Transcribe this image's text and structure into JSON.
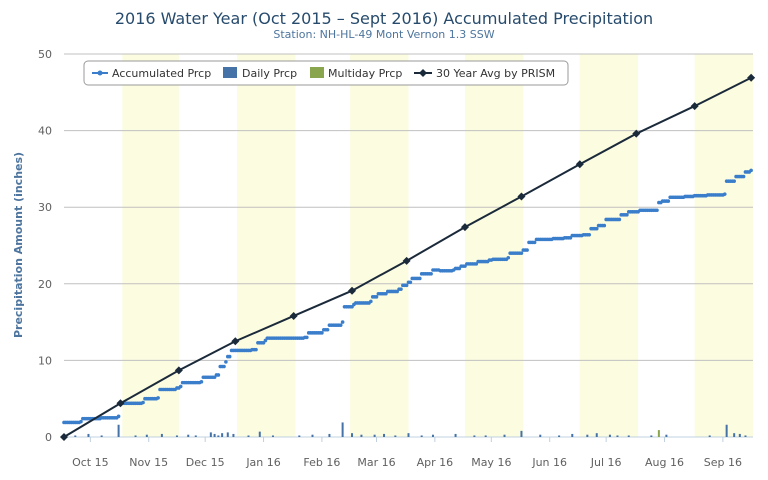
{
  "chart_data": {
    "type": "line",
    "title": "2016 Water Year (Oct 2015 – Sept 2016) Accumulated Precipitation",
    "subtitle": "Station: NH-HL-49 Mont Vernon 1.3 SSW",
    "ylabel": "Precipitation Amount (inches)",
    "xlabel": "",
    "ylim": [
      0,
      50
    ],
    "yticks": [
      0,
      10,
      20,
      30,
      40,
      50
    ],
    "xlim": [
      0,
      366
    ],
    "x_tick_labels": [
      {
        "label": "Oct 15",
        "day": 14
      },
      {
        "label": "Nov 15",
        "day": 45
      },
      {
        "label": "Dec 15",
        "day": 75
      },
      {
        "label": "Jan 16",
        "day": 106
      },
      {
        "label": "Feb 16",
        "day": 137
      },
      {
        "label": "Mar 16",
        "day": 166
      },
      {
        "label": "Apr 16",
        "day": 197
      },
      {
        "label": "May 16",
        "day": 227
      },
      {
        "label": "Jun 16",
        "day": 258
      },
      {
        "label": "Jul 16",
        "day": 288
      },
      {
        "label": "Aug 16",
        "day": 319
      },
      {
        "label": "Sep 16",
        "day": 350
      }
    ],
    "shaded_months": [
      [
        31,
        61
      ],
      [
        92,
        123
      ],
      [
        152,
        183
      ],
      [
        213,
        244
      ],
      [
        274,
        305
      ],
      [
        335,
        366
      ]
    ],
    "grid": true,
    "legend_position": "top-left",
    "legend": [
      {
        "name": "Accumulated Prcp",
        "symbol": "line-dot",
        "color": "#3a7ecb"
      },
      {
        "name": "Daily Prcp",
        "symbol": "bar",
        "color": "#4572a7"
      },
      {
        "name": "Multiday Prcp",
        "symbol": "bar",
        "color": "#89a54e"
      },
      {
        "name": "30 Year Avg by PRISM",
        "symbol": "line-diamond",
        "color": "#1b2a3a"
      }
    ],
    "series": [
      {
        "name": "Accumulated Prcp",
        "color": "#3a7ecb",
        "points": [
          [
            0,
            1.9
          ],
          [
            9,
            2.0
          ],
          [
            10,
            2.4
          ],
          [
            20,
            2.5
          ],
          [
            29,
            2.7
          ],
          [
            30,
            4.4
          ],
          [
            42,
            4.5
          ],
          [
            43,
            5.0
          ],
          [
            50,
            5.1
          ],
          [
            51,
            6.2
          ],
          [
            60,
            6.4
          ],
          [
            62,
            6.6
          ],
          [
            63,
            7.1
          ],
          [
            73,
            7.2
          ],
          [
            74,
            7.8
          ],
          [
            81,
            8.1
          ],
          [
            83,
            9.2
          ],
          [
            86,
            9.8
          ],
          [
            87,
            10.5
          ],
          [
            89,
            11.3
          ],
          [
            100,
            11.4
          ],
          [
            103,
            12.3
          ],
          [
            107,
            12.6
          ],
          [
            108,
            12.9
          ],
          [
            128,
            13.0
          ],
          [
            130,
            13.6
          ],
          [
            138,
            14.0
          ],
          [
            141,
            14.6
          ],
          [
            148,
            15.0
          ],
          [
            149,
            17.0
          ],
          [
            154,
            17.3
          ],
          [
            155,
            17.5
          ],
          [
            163,
            17.7
          ],
          [
            164,
            18.3
          ],
          [
            167,
            18.7
          ],
          [
            172,
            19.0
          ],
          [
            178,
            19.3
          ],
          [
            180,
            19.8
          ],
          [
            183,
            20.2
          ],
          [
            185,
            20.7
          ],
          [
            190,
            21.3
          ],
          [
            196,
            21.8
          ],
          [
            200,
            21.7
          ],
          [
            207,
            21.8
          ],
          [
            208,
            22.0
          ],
          [
            211,
            22.3
          ],
          [
            214,
            22.6
          ],
          [
            220,
            22.9
          ],
          [
            226,
            23.1
          ],
          [
            228,
            23.2
          ],
          [
            236,
            23.4
          ],
          [
            237,
            24.0
          ],
          [
            244,
            24.4
          ],
          [
            247,
            25.4
          ],
          [
            251,
            25.8
          ],
          [
            260,
            25.9
          ],
          [
            266,
            26.0
          ],
          [
            270,
            26.3
          ],
          [
            276,
            26.4
          ],
          [
            280,
            27.2
          ],
          [
            284,
            27.6
          ],
          [
            288,
            28.4
          ],
          [
            296,
            29.0
          ],
          [
            300,
            29.4
          ],
          [
            306,
            29.6
          ],
          [
            316,
            30.6
          ],
          [
            318,
            30.8
          ],
          [
            322,
            31.3
          ],
          [
            330,
            31.4
          ],
          [
            335,
            31.5
          ],
          [
            342,
            31.6
          ],
          [
            351,
            31.7
          ],
          [
            352,
            33.4
          ],
          [
            357,
            34.0
          ],
          [
            362,
            34.6
          ],
          [
            365,
            34.8
          ]
        ]
      },
      {
        "name": "30 Year Avg by PRISM",
        "color": "#1b2a3a",
        "points": [
          [
            0,
            0
          ],
          [
            30,
            4.4
          ],
          [
            61,
            8.7
          ],
          [
            91,
            12.5
          ],
          [
            122,
            15.8
          ],
          [
            153,
            19.1
          ],
          [
            182,
            23.0
          ],
          [
            213,
            27.4
          ],
          [
            243,
            31.4
          ],
          [
            274,
            35.6
          ],
          [
            304,
            39.6
          ],
          [
            335,
            43.2
          ],
          [
            365,
            46.9
          ]
        ]
      }
    ],
    "daily_prcp": [
      [
        1,
        0.3
      ],
      [
        6,
        0.2
      ],
      [
        13,
        0.4
      ],
      [
        20,
        0.2
      ],
      [
        29,
        1.6
      ],
      [
        38,
        0.2
      ],
      [
        44,
        0.3
      ],
      [
        52,
        0.4
      ],
      [
        60,
        0.2
      ],
      [
        66,
        0.3
      ],
      [
        70,
        0.2
      ],
      [
        78,
        0.6
      ],
      [
        80,
        0.4
      ],
      [
        82,
        0.2
      ],
      [
        84,
        0.5
      ],
      [
        87,
        0.6
      ],
      [
        90,
        0.4
      ],
      [
        98,
        0.2
      ],
      [
        104,
        0.7
      ],
      [
        111,
        0.2
      ],
      [
        125,
        0.2
      ],
      [
        132,
        0.3
      ],
      [
        141,
        0.4
      ],
      [
        148,
        1.9
      ],
      [
        153,
        0.5
      ],
      [
        158,
        0.3
      ],
      [
        165,
        0.3
      ],
      [
        170,
        0.4
      ],
      [
        176,
        0.2
      ],
      [
        183,
        0.5
      ],
      [
        190,
        0.2
      ],
      [
        196,
        0.3
      ],
      [
        208,
        0.4
      ],
      [
        218,
        0.2
      ],
      [
        224,
        0.2
      ],
      [
        234,
        0.3
      ],
      [
        243,
        0.8
      ],
      [
        253,
        0.3
      ],
      [
        263,
        0.2
      ],
      [
        270,
        0.4
      ],
      [
        278,
        0.3
      ],
      [
        283,
        0.5
      ],
      [
        290,
        0.3
      ],
      [
        294,
        0.2
      ],
      [
        300,
        0.2
      ],
      [
        312,
        0.2
      ],
      [
        320,
        0.3
      ],
      [
        343,
        0.2
      ],
      [
        352,
        1.6
      ],
      [
        356,
        0.5
      ],
      [
        359,
        0.4
      ],
      [
        362,
        0.2
      ]
    ],
    "multiday_prcp": [
      [
        316,
        0.9
      ]
    ]
  }
}
